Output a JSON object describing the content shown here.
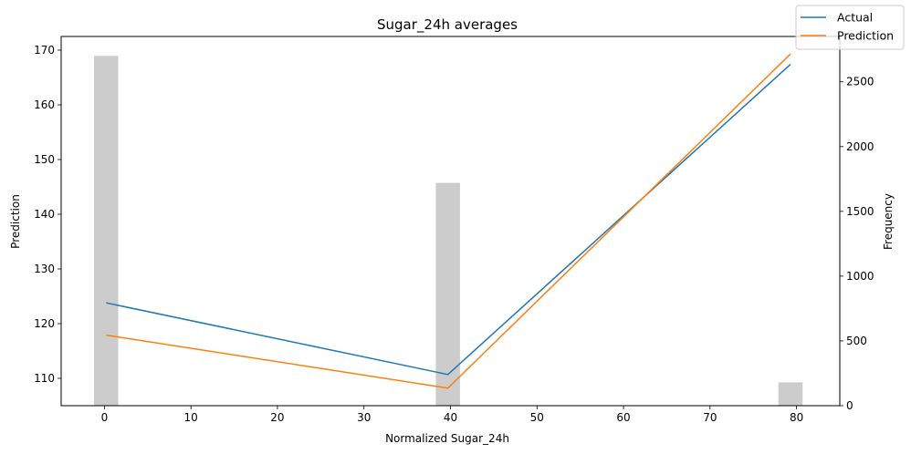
{
  "chart_data": {
    "type": "line",
    "title": "Sugar_24h averages",
    "xlabel": "Normalized Sugar_24h",
    "ylabel": "Prediction",
    "y2label": "Frequency",
    "xlim": [
      -5,
      85
    ],
    "ylim": [
      105,
      172.5
    ],
    "y2lim": [
      0,
      2850
    ],
    "xticks": [
      0,
      10,
      20,
      30,
      40,
      50,
      60,
      70,
      80
    ],
    "yticks": [
      110,
      120,
      130,
      140,
      150,
      160,
      170
    ],
    "y2ticks": [
      0,
      500,
      1000,
      1500,
      2000,
      2500
    ],
    "grid": false,
    "legend_position": "top-right",
    "series": [
      {
        "name": "Actual",
        "color": "#1f77b4",
        "x": [
          0.2,
          39.7,
          79.3
        ],
        "y": [
          123.8,
          110.7,
          167.4
        ]
      },
      {
        "name": "Prediction",
        "color": "#ff7f0e",
        "x": [
          0.2,
          39.7,
          79.3
        ],
        "y": [
          117.9,
          108.2,
          169.3
        ]
      }
    ],
    "histogram": {
      "color": "#cccccc",
      "axis": "y2",
      "bar_width": 2.8,
      "x": [
        0.2,
        39.7,
        79.3
      ],
      "counts": [
        2700,
        1720,
        180
      ]
    }
  }
}
